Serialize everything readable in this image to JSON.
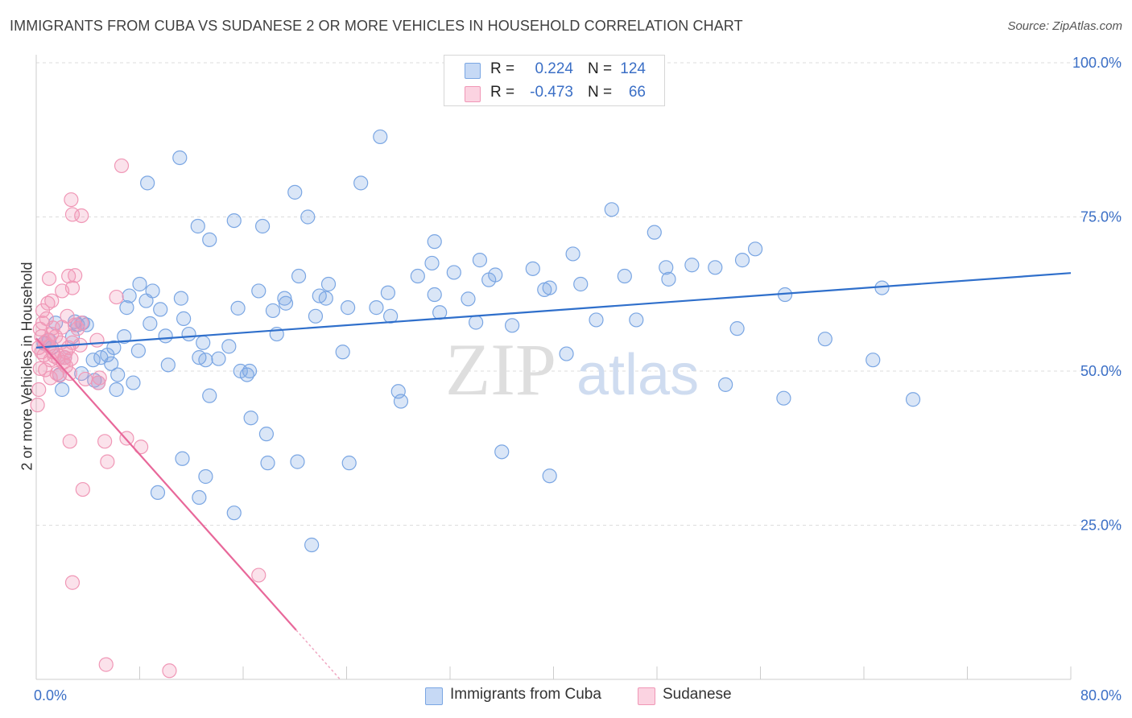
{
  "title": "IMMIGRANTS FROM CUBA VS SUDANESE 2 OR MORE VEHICLES IN HOUSEHOLD CORRELATION CHART",
  "source": "Source: ZipAtlas.com",
  "watermark": {
    "zip": "ZIP",
    "atlas": "atlas"
  },
  "legend": {
    "rows": [
      {
        "r_label": "R =",
        "r_value": "0.224",
        "n_label": "N =",
        "n_value": "124"
      },
      {
        "r_label": "R =",
        "r_value": "-0.473",
        "n_label": "N =",
        "n_value": "66"
      }
    ]
  },
  "bottom_legend": [
    "Immigrants from Cuba",
    "Sudanese"
  ],
  "colors": {
    "cuba": "#7aa6e3",
    "cuba_line": "#2f6fcb",
    "sudanese": "#f097b6",
    "sudanese_line": "#e8689a",
    "tick_text": "#3b6fc6"
  },
  "chart_data": {
    "type": "scatter",
    "title": "IMMIGRANTS FROM CUBA VS SUDANESE 2 OR MORE VEHICLES IN HOUSEHOLD CORRELATION CHART",
    "xlabel": "",
    "ylabel": "2 or more Vehicles in Household",
    "xlim": [
      0,
      80
    ],
    "ylim": [
      0,
      100
    ],
    "x_tick_labels": [
      "0.0%",
      "80.0%"
    ],
    "y_tick_labels": [
      "25.0%",
      "50.0%",
      "75.0%",
      "100.0%"
    ],
    "y_ticks": [
      25,
      50,
      75,
      100
    ],
    "grid": true,
    "legend_position": "top-center",
    "series": [
      {
        "name": "Immigrants from Cuba",
        "r": 0.224,
        "n": 124,
        "trend": {
          "x": [
            0,
            80
          ],
          "y": [
            53.8,
            65.9
          ]
        },
        "points": [
          [
            0.6,
            54.5
          ],
          [
            1.2,
            53.8
          ],
          [
            1.5,
            57.8
          ],
          [
            2.2,
            52.2
          ],
          [
            2.8,
            55.6
          ],
          [
            3.2,
            57.5
          ],
          [
            3.6,
            57.8
          ],
          [
            1.8,
            49.4
          ],
          [
            2.0,
            47.0
          ],
          [
            4.4,
            51.8
          ],
          [
            5.0,
            52.2
          ],
          [
            5.5,
            52.6
          ],
          [
            6.2,
            47.0
          ],
          [
            6.0,
            53.8
          ],
          [
            5.8,
            51.2
          ],
          [
            6.8,
            55.6
          ],
          [
            7.2,
            62.2
          ],
          [
            7.9,
            53.3
          ],
          [
            8.0,
            64.1
          ],
          [
            8.5,
            61.4
          ],
          [
            9.0,
            63.0
          ],
          [
            9.6,
            60.0
          ],
          [
            10.0,
            55.7
          ],
          [
            11.2,
            61.8
          ],
          [
            11.4,
            58.5
          ],
          [
            12.6,
            52.2
          ],
          [
            12.9,
            54.6
          ],
          [
            13.1,
            51.8
          ],
          [
            13.4,
            46.0
          ],
          [
            11.8,
            56.0
          ],
          [
            10.2,
            51.0
          ],
          [
            8.8,
            57.7
          ],
          [
            7.5,
            48.1
          ],
          [
            6.3,
            49.4
          ],
          [
            4.8,
            48.1
          ],
          [
            4.5,
            48.5
          ],
          [
            3.5,
            49.6
          ],
          [
            15.6,
            60.2
          ],
          [
            16.3,
            49.4
          ],
          [
            16.5,
            50.0
          ],
          [
            17.2,
            63.0
          ],
          [
            18.3,
            59.8
          ],
          [
            18.6,
            56.0
          ],
          [
            19.2,
            61.8
          ],
          [
            20.3,
            65.4
          ],
          [
            21.6,
            58.9
          ],
          [
            21.9,
            62.2
          ],
          [
            22.4,
            61.8
          ],
          [
            22.6,
            64.1
          ],
          [
            23.7,
            53.1
          ],
          [
            24.1,
            60.3
          ],
          [
            26.3,
            60.3
          ],
          [
            27.4,
            58.9
          ],
          [
            28.0,
            46.7
          ],
          [
            28.2,
            45.1
          ],
          [
            29.5,
            65.4
          ],
          [
            30.6,
            67.5
          ],
          [
            30.8,
            62.4
          ],
          [
            31.2,
            59.5
          ],
          [
            32.3,
            66.0
          ],
          [
            33.4,
            61.7
          ],
          [
            34.0,
            57.9
          ],
          [
            34.3,
            68.0
          ],
          [
            35.0,
            64.8
          ],
          [
            35.5,
            65.6
          ],
          [
            36.8,
            57.4
          ],
          [
            38.4,
            66.6
          ],
          [
            39.3,
            63.2
          ],
          [
            39.7,
            63.5
          ],
          [
            41.0,
            52.8
          ],
          [
            41.5,
            69.0
          ],
          [
            42.1,
            64.1
          ],
          [
            43.3,
            58.3
          ],
          [
            44.5,
            76.2
          ],
          [
            45.5,
            65.4
          ],
          [
            46.4,
            58.3
          ],
          [
            47.8,
            72.5
          ],
          [
            48.7,
            66.8
          ],
          [
            48.9,
            64.9
          ],
          [
            50.7,
            67.2
          ],
          [
            52.5,
            66.8
          ],
          [
            53.3,
            47.8
          ],
          [
            54.2,
            56.9
          ],
          [
            54.6,
            68.0
          ],
          [
            55.6,
            69.8
          ],
          [
            57.8,
            45.6
          ],
          [
            57.9,
            62.4
          ],
          [
            61.0,
            55.2
          ],
          [
            64.7,
            51.8
          ],
          [
            65.4,
            63.5
          ],
          [
            67.8,
            45.4
          ],
          [
            15.3,
            74.4
          ],
          [
            17.5,
            73.5
          ],
          [
            20.0,
            79.0
          ],
          [
            21.0,
            75.0
          ],
          [
            25.1,
            80.5
          ],
          [
            26.6,
            88.0
          ],
          [
            30.8,
            71.0
          ],
          [
            39.7,
            33.0
          ],
          [
            36.0,
            36.9
          ],
          [
            16.6,
            42.4
          ],
          [
            17.8,
            39.8
          ],
          [
            17.9,
            35.1
          ],
          [
            20.2,
            35.3
          ],
          [
            24.2,
            35.1
          ],
          [
            15.3,
            27.0
          ],
          [
            21.3,
            21.8
          ],
          [
            12.6,
            29.5
          ],
          [
            13.1,
            32.9
          ],
          [
            11.3,
            35.8
          ],
          [
            9.4,
            30.3
          ],
          [
            11.1,
            84.6
          ],
          [
            8.6,
            80.5
          ],
          [
            12.5,
            73.5
          ],
          [
            13.4,
            71.3
          ],
          [
            7.0,
            60.3
          ],
          [
            3.0,
            58.0
          ],
          [
            14.9,
            54.0
          ],
          [
            14.1,
            52.0
          ],
          [
            15.8,
            50.0
          ],
          [
            19.3,
            61.0
          ],
          [
            27.2,
            62.7
          ],
          [
            3.9,
            57.5
          ],
          [
            1.0,
            55.0
          ]
        ]
      },
      {
        "name": "Sudanese",
        "r": -0.473,
        "n": 66,
        "trend": {
          "x": [
            0,
            20.1
          ],
          "y": [
            55.3,
            8.0
          ]
        },
        "points": [
          [
            0.2,
            53.8
          ],
          [
            0.3,
            56.8
          ],
          [
            0.4,
            55.6
          ],
          [
            0.5,
            57.8
          ],
          [
            0.6,
            52.6
          ],
          [
            0.7,
            54.6
          ],
          [
            0.8,
            58.5
          ],
          [
            0.9,
            55.0
          ],
          [
            1.0,
            54.0
          ],
          [
            1.1,
            51.8
          ],
          [
            1.2,
            56.0
          ],
          [
            1.3,
            53.1
          ],
          [
            1.4,
            52.4
          ],
          [
            1.5,
            55.6
          ],
          [
            1.6,
            49.6
          ],
          [
            1.7,
            52.0
          ],
          [
            1.8,
            49.3
          ],
          [
            1.9,
            54.6
          ],
          [
            2.0,
            57.1
          ],
          [
            2.1,
            51.4
          ],
          [
            2.2,
            52.2
          ],
          [
            2.3,
            50.8
          ],
          [
            2.4,
            58.9
          ],
          [
            2.5,
            53.8
          ],
          [
            2.6,
            49.6
          ],
          [
            2.7,
            52.0
          ],
          [
            2.8,
            54.6
          ],
          [
            3.0,
            57.5
          ],
          [
            3.2,
            56.9
          ],
          [
            3.4,
            54.2
          ],
          [
            0.1,
            44.5
          ],
          [
            0.2,
            47.0
          ],
          [
            0.3,
            50.4
          ],
          [
            0.5,
            59.8
          ],
          [
            0.9,
            61.0
          ],
          [
            1.2,
            61.4
          ],
          [
            1.0,
            65.0
          ],
          [
            2.0,
            63.0
          ],
          [
            2.5,
            65.4
          ],
          [
            2.8,
            63.5
          ],
          [
            3.0,
            65.5
          ],
          [
            3.5,
            57.8
          ],
          [
            2.7,
            77.8
          ],
          [
            2.8,
            75.4
          ],
          [
            3.5,
            75.2
          ],
          [
            6.6,
            83.3
          ],
          [
            6.2,
            62.0
          ],
          [
            1.3,
            57.0
          ],
          [
            4.7,
            55.0
          ],
          [
            4.8,
            48.1
          ],
          [
            4.9,
            48.9
          ],
          [
            2.6,
            38.6
          ],
          [
            5.3,
            38.6
          ],
          [
            7.0,
            39.1
          ],
          [
            8.1,
            37.7
          ],
          [
            5.5,
            35.3
          ],
          [
            3.6,
            30.8
          ],
          [
            17.2,
            16.9
          ],
          [
            2.8,
            15.7
          ],
          [
            5.4,
            2.4
          ],
          [
            10.3,
            1.4
          ],
          [
            0.4,
            53.1
          ],
          [
            0.7,
            50.2
          ],
          [
            1.1,
            48.9
          ],
          [
            2.3,
            53.1
          ],
          [
            3.8,
            48.7
          ]
        ]
      }
    ]
  }
}
